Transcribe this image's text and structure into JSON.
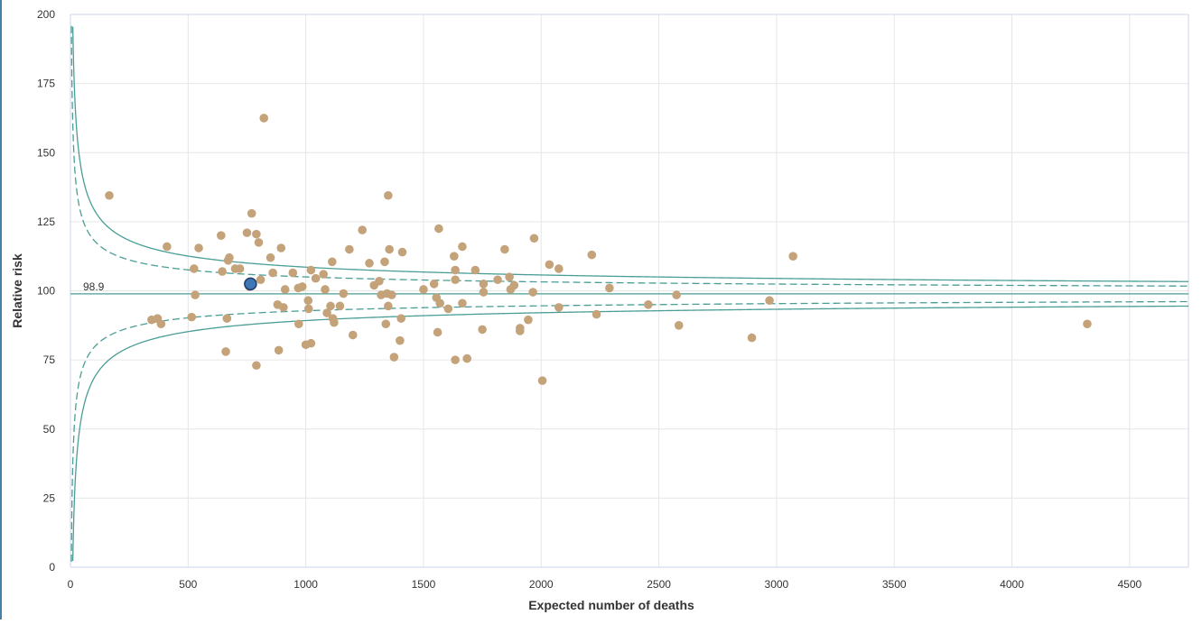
{
  "chart_data": {
    "type": "scatter",
    "title": "",
    "xlabel": "Expected number of deaths",
    "ylabel": "Relative risk",
    "xlim": [
      0,
      4750
    ],
    "ylim": [
      0,
      200
    ],
    "x_ticks": [
      0,
      500,
      1000,
      1500,
      2000,
      2500,
      3000,
      3500,
      4000,
      4500
    ],
    "y_ticks": [
      0,
      25,
      50,
      75,
      100,
      125,
      150,
      175,
      200
    ],
    "mean_value": 98.9,
    "mean_label": "98.9",
    "grid": true,
    "colors": {
      "points": "#c4a27a",
      "highlight": "#3f76b5",
      "limits": "#4a9e96"
    },
    "control_limits": [
      {
        "name": "upper-99.8",
        "z": 3.09,
        "style": "solid",
        "side": "upper"
      },
      {
        "name": "upper-95",
        "z": 1.96,
        "style": "dashed",
        "side": "upper"
      },
      {
        "name": "lower-95",
        "z": 1.96,
        "style": "dashed",
        "side": "lower"
      },
      {
        "name": "lower-99.8",
        "z": 3.09,
        "style": "solid",
        "side": "lower"
      }
    ],
    "highlight_point": {
      "x": 765,
      "y": 102.5
    },
    "points": [
      [
        165,
        134.5
      ],
      [
        410,
        116
      ],
      [
        545,
        115.5
      ],
      [
        525,
        108
      ],
      [
        640,
        120
      ],
      [
        670,
        111
      ],
      [
        675,
        112
      ],
      [
        700,
        108
      ],
      [
        720,
        108
      ],
      [
        645,
        107
      ],
      [
        750,
        121
      ],
      [
        770,
        128
      ],
      [
        790,
        120.5
      ],
      [
        800,
        117.5
      ],
      [
        808,
        104
      ],
      [
        822,
        162.5
      ],
      [
        850,
        112
      ],
      [
        895,
        115.5
      ],
      [
        860,
        106.5
      ],
      [
        945,
        106.5
      ],
      [
        530,
        98.5
      ],
      [
        515,
        90.5
      ],
      [
        665,
        90
      ],
      [
        660,
        78
      ],
      [
        790,
        73
      ],
      [
        885,
        78.5
      ],
      [
        345,
        89.5
      ],
      [
        370,
        90
      ],
      [
        385,
        88
      ],
      [
        760,
        101.5
      ],
      [
        880,
        95
      ],
      [
        905,
        94
      ],
      [
        912,
        100.5
      ],
      [
        968,
        101
      ],
      [
        985,
        101.5
      ],
      [
        1010,
        96.5
      ],
      [
        1022,
        107.5
      ],
      [
        1042,
        104.5
      ],
      [
        1075,
        106
      ],
      [
        1112,
        110.5
      ],
      [
        1082,
        100.5
      ],
      [
        1160,
        99
      ],
      [
        1145,
        94.5
      ],
      [
        1105,
        94.5
      ],
      [
        1012,
        93.5
      ],
      [
        1090,
        92
      ],
      [
        1115,
        90
      ],
      [
        1120,
        88.5
      ],
      [
        1000,
        80.5
      ],
      [
        1022,
        81
      ],
      [
        1200,
        84
      ],
      [
        970,
        88
      ],
      [
        1185,
        115
      ],
      [
        1240,
        122
      ],
      [
        1270,
        110
      ],
      [
        1335,
        110.5
      ],
      [
        1350,
        134.5
      ],
      [
        1355,
        115
      ],
      [
        1410,
        114
      ],
      [
        1290,
        102
      ],
      [
        1312,
        103.5
      ],
      [
        1345,
        99
      ],
      [
        1365,
        98.5
      ],
      [
        1320,
        98.5
      ],
      [
        1350,
        94.5
      ],
      [
        1340,
        88
      ],
      [
        1405,
        90
      ],
      [
        1400,
        82
      ],
      [
        1375,
        76
      ],
      [
        1500,
        100.5
      ],
      [
        1545,
        102.5
      ],
      [
        1555,
        97.5
      ],
      [
        1570,
        95.5
      ],
      [
        1605,
        93.5
      ],
      [
        1565,
        122.5
      ],
      [
        1630,
        112.5
      ],
      [
        1635,
        107.5
      ],
      [
        1665,
        116
      ],
      [
        1635,
        104
      ],
      [
        1665,
        95.5
      ],
      [
        1560,
        85
      ],
      [
        1635,
        75
      ],
      [
        1685,
        75.5
      ],
      [
        1720,
        107.5
      ],
      [
        1755,
        102.5
      ],
      [
        1755,
        99.5
      ],
      [
        1750,
        86
      ],
      [
        1815,
        104
      ],
      [
        1845,
        115
      ],
      [
        1865,
        105
      ],
      [
        1870,
        100.5
      ],
      [
        1885,
        102
      ],
      [
        1910,
        86.5
      ],
      [
        1910,
        85.5
      ],
      [
        1945,
        89.5
      ],
      [
        1965,
        99.5
      ],
      [
        1970,
        119
      ],
      [
        2005,
        67.5
      ],
      [
        2035,
        109.5
      ],
      [
        2075,
        108
      ],
      [
        2075,
        94
      ],
      [
        2215,
        113
      ],
      [
        2235,
        91.5
      ],
      [
        2290,
        101
      ],
      [
        2455,
        95
      ],
      [
        2575,
        98.5
      ],
      [
        2585,
        87.5
      ],
      [
        2895,
        83
      ],
      [
        2970,
        96.5
      ],
      [
        3070,
        112.5
      ],
      [
        4320,
        88
      ]
    ]
  }
}
